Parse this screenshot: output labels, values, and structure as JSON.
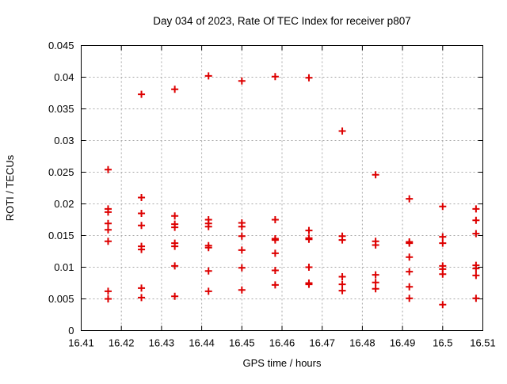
{
  "chart_data": {
    "type": "scatter",
    "title": "Day 034 of 2023, Rate Of TEC Index for receiver p807",
    "xlabel": "GPS time / hours",
    "ylabel": "ROTI / TECUs",
    "xlim": [
      16.41,
      16.51
    ],
    "ylim": [
      0,
      0.045
    ],
    "xticks": [
      16.41,
      16.42,
      16.43,
      16.44,
      16.45,
      16.46,
      16.47,
      16.48,
      16.49,
      16.5,
      16.51
    ],
    "xtick_labels": [
      "16.41",
      "16.42",
      "16.43",
      "16.44",
      "16.45",
      "16.46",
      "16.47",
      "16.48",
      "16.49",
      "16.5",
      "16.51"
    ],
    "yticks": [
      0,
      0.005,
      0.01,
      0.015,
      0.02,
      0.025,
      0.03,
      0.035,
      0.04,
      0.045
    ],
    "ytick_labels": [
      "0",
      "0.005",
      "0.01",
      "0.015",
      "0.02",
      "0.025",
      "0.03",
      "0.035",
      "0.04",
      "0.045"
    ],
    "grid": "dashed",
    "legend": "none",
    "marker": "plus",
    "marker_color": "#dd0000",
    "grid_color": "#a8a8a8",
    "border_color": "#000000",
    "series": [
      {
        "name": "ROTI",
        "points": [
          [
            16.4167,
            0.0254
          ],
          [
            16.4167,
            0.0192
          ],
          [
            16.4167,
            0.0187
          ],
          [
            16.4167,
            0.0169
          ],
          [
            16.4167,
            0.0159
          ],
          [
            16.4167,
            0.0141
          ],
          [
            16.4167,
            0.0062
          ],
          [
            16.4167,
            0.005
          ],
          [
            16.425,
            0.0373
          ],
          [
            16.425,
            0.021
          ],
          [
            16.425,
            0.0185
          ],
          [
            16.425,
            0.0166
          ],
          [
            16.425,
            0.0133
          ],
          [
            16.425,
            0.0128
          ],
          [
            16.425,
            0.0067
          ],
          [
            16.425,
            0.0052
          ],
          [
            16.4333,
            0.0381
          ],
          [
            16.4333,
            0.0181
          ],
          [
            16.4333,
            0.0168
          ],
          [
            16.4333,
            0.0163
          ],
          [
            16.4333,
            0.0138
          ],
          [
            16.4333,
            0.0133
          ],
          [
            16.4333,
            0.0102
          ],
          [
            16.4333,
            0.0054
          ],
          [
            16.4417,
            0.0402
          ],
          [
            16.4417,
            0.0175
          ],
          [
            16.4417,
            0.0169
          ],
          [
            16.4417,
            0.0164
          ],
          [
            16.4417,
            0.0134
          ],
          [
            16.4417,
            0.0131
          ],
          [
            16.4417,
            0.0094
          ],
          [
            16.4417,
            0.0062
          ],
          [
            16.45,
            0.0394
          ],
          [
            16.45,
            0.017
          ],
          [
            16.45,
            0.0164
          ],
          [
            16.45,
            0.0149
          ],
          [
            16.45,
            0.0127
          ],
          [
            16.45,
            0.0099
          ],
          [
            16.45,
            0.0064
          ],
          [
            16.4583,
            0.0401
          ],
          [
            16.4583,
            0.0175
          ],
          [
            16.4583,
            0.0145
          ],
          [
            16.4583,
            0.0143
          ],
          [
            16.4583,
            0.0122
          ],
          [
            16.4583,
            0.0095
          ],
          [
            16.4583,
            0.0072
          ],
          [
            16.4667,
            0.0399
          ],
          [
            16.4667,
            0.0158
          ],
          [
            16.4667,
            0.0146
          ],
          [
            16.4667,
            0.0144
          ],
          [
            16.4667,
            0.01
          ],
          [
            16.4667,
            0.0075
          ],
          [
            16.4667,
            0.0073
          ],
          [
            16.475,
            0.0315
          ],
          [
            16.475,
            0.0149
          ],
          [
            16.475,
            0.0143
          ],
          [
            16.475,
            0.0085
          ],
          [
            16.475,
            0.0073
          ],
          [
            16.475,
            0.0063
          ],
          [
            16.4833,
            0.0246
          ],
          [
            16.4833,
            0.0141
          ],
          [
            16.4833,
            0.0135
          ],
          [
            16.4833,
            0.0088
          ],
          [
            16.4833,
            0.0076
          ],
          [
            16.4833,
            0.0066
          ],
          [
            16.4917,
            0.0208
          ],
          [
            16.4917,
            0.014
          ],
          [
            16.4917,
            0.0138
          ],
          [
            16.4917,
            0.0116
          ],
          [
            16.4917,
            0.0093
          ],
          [
            16.4917,
            0.0069
          ],
          [
            16.4917,
            0.0051
          ],
          [
            16.5,
            0.0196
          ],
          [
            16.5,
            0.0148
          ],
          [
            16.5,
            0.0138
          ],
          [
            16.5,
            0.0102
          ],
          [
            16.5,
            0.0097
          ],
          [
            16.5,
            0.0089
          ],
          [
            16.5,
            0.0041
          ],
          [
            16.5083,
            0.0192
          ],
          [
            16.5083,
            0.0174
          ],
          [
            16.5083,
            0.0153
          ],
          [
            16.5083,
            0.0103
          ],
          [
            16.5083,
            0.0098
          ],
          [
            16.5083,
            0.0087
          ],
          [
            16.5083,
            0.0051
          ]
        ]
      }
    ]
  }
}
